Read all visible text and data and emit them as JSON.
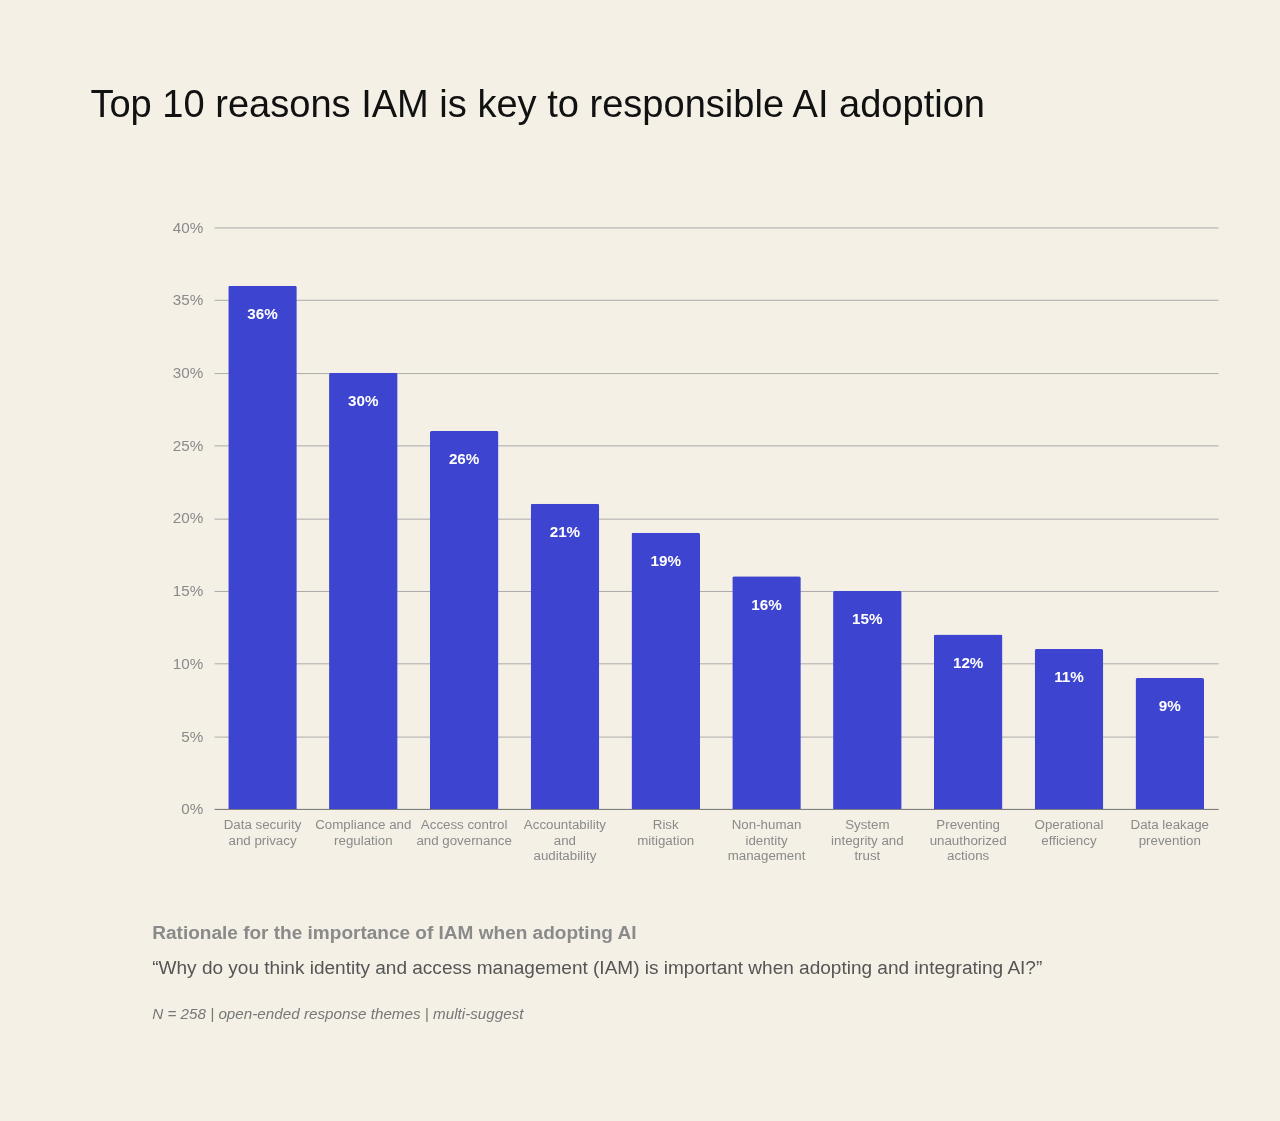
{
  "chart_data": {
    "type": "bar",
    "title": "Top 10 reasons IAM is key to responsible AI adoption",
    "categories": [
      "Data security and privacy",
      "Compliance and regulation",
      "Access control and governance",
      "Accountability and auditability",
      "Risk mitigation",
      "Non-human identity management",
      "System integrity and trust",
      "Preventing unauthorized actions",
      "Operational efficiency",
      "Data leakage prevention"
    ],
    "values": [
      36,
      30,
      26,
      21,
      19,
      16,
      15,
      12,
      11,
      9
    ],
    "value_labels": [
      "36%",
      "30%",
      "26%",
      "21%",
      "19%",
      "16%",
      "15%",
      "12%",
      "11%",
      "9%"
    ],
    "color": "#3d44cf",
    "ylim": [
      0,
      40
    ],
    "yticks": [
      {
        "value": 0,
        "label": "0%"
      },
      {
        "value": 5,
        "label": "5%"
      },
      {
        "value": 10,
        "label": "10%"
      },
      {
        "value": 15,
        "label": "15%"
      },
      {
        "value": 20,
        "label": "20%"
      },
      {
        "value": 25,
        "label": "25%"
      },
      {
        "value": 30,
        "label": "30%"
      },
      {
        "value": 35,
        "label": "35%"
      },
      {
        "value": 40,
        "label": "40%"
      }
    ],
    "grid": "y",
    "annotations": [
      "Rationale for the importance of IAM when adopting AI",
      "“Why do you think identity and access management (IAM) is important when adopting and integrating AI?”",
      "N = 258 | open-ended response themes | multi-suggest"
    ]
  }
}
